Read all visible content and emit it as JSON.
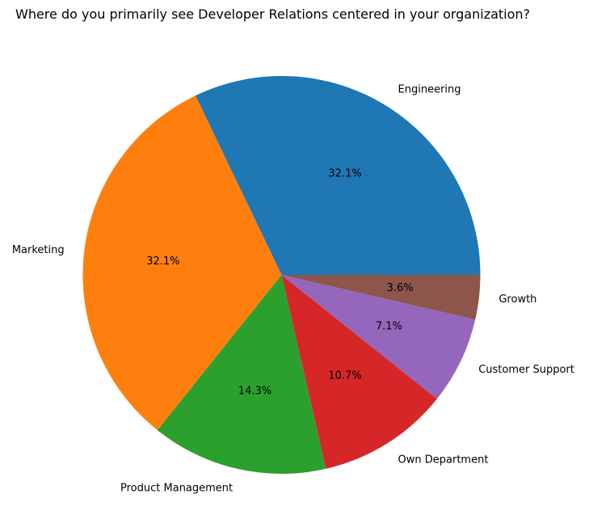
{
  "chart_data": {
    "type": "pie",
    "title": "Where do you primarily see Developer Relations centered in your organization?",
    "categories": [
      "Engineering",
      "Marketing",
      "Product Management",
      "Own Department",
      "Customer Support",
      "Growth"
    ],
    "values": [
      32.1,
      32.1,
      14.3,
      10.7,
      7.1,
      3.6
    ],
    "percent_labels": [
      "32.1%",
      "32.1%",
      "14.3%",
      "10.7%",
      "7.1%",
      "3.6%"
    ],
    "colors": [
      "#1f77b4",
      "#ff7f0e",
      "#2ca02c",
      "#d62728",
      "#9467bd",
      "#8c564b"
    ],
    "start_angle_deg": 0,
    "direction": "counterclockwise",
    "legend": "none"
  }
}
